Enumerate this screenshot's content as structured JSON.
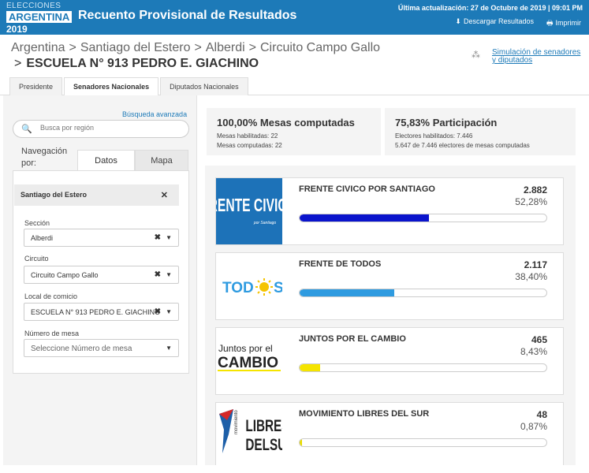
{
  "header": {
    "logo_line1": "ELECCIONES",
    "logo_line2": "ARGENTINA",
    "logo_line3": "2019",
    "title": "Recuento Provisional de Resultados",
    "last_update": "Última actualización: 27 de Octubre de 2019 | 09:01 PM",
    "download_label": "Descargar Resultados",
    "print_label": "Imprimir",
    "download_icon": "download-icon",
    "print_icon": "print-icon",
    "color": "#1d7ab8"
  },
  "breadcrumb": {
    "items": [
      "Argentina",
      "Santiago del Estero",
      "Alberdi",
      "Circuito Campo Gallo"
    ],
    "separator": ">",
    "current": "ESCUELA N° 913 PEDRO E. GIACHINO"
  },
  "simulation_link": "Simulación de senadores y diputados",
  "tabs": [
    {
      "label": "Presidente",
      "active": false
    },
    {
      "label": "Senadores Nacionales",
      "active": true
    },
    {
      "label": "Diputados Nacionales",
      "active": false
    }
  ],
  "sidebar": {
    "advanced_search": "Búsqueda avanzada",
    "search_placeholder": "Busca por región",
    "nav_label": "Navegación por:",
    "subtabs": {
      "datos": "Datos",
      "mapa": "Mapa"
    },
    "selected_chip": "Santiago del Estero",
    "filters": [
      {
        "label": "Sección",
        "value": "Alberdi"
      },
      {
        "label": "Circuito",
        "value": "Circuito Campo Gallo"
      },
      {
        "label": "Local de comicio",
        "value": "ESCUELA N° 913  PEDRO E. GIACHINO"
      },
      {
        "label": "Número de mesa",
        "value": "Seleccione Número de mesa"
      }
    ]
  },
  "stats": {
    "mesas_title": "100,00% Mesas computadas",
    "mesas_habilitadas": "Mesas habilitadas: 22",
    "mesas_computadas": "Mesas computadas: 22",
    "participacion_title": "75,83% Participación",
    "electores_habilitados": "Electores habilitados: 7.446",
    "electores_computados": "5.647 de 7.446 electores de mesas computadas"
  },
  "results": [
    {
      "name": "FRENTE CIVICO POR SANTIAGO",
      "votes": "2.882",
      "percent": "52,28%",
      "share": 52.28,
      "color": "#0a14cc",
      "logo_text": "FRENTE CIVICO"
    },
    {
      "name": "FRENTE DE TODOS",
      "votes": "2.117",
      "percent": "38,40%",
      "share": 38.4,
      "color": "#2f9be0",
      "logo_text": "TOD S"
    },
    {
      "name": "JUNTOS POR EL CAMBIO",
      "votes": "465",
      "percent": "8,43%",
      "share": 8.43,
      "color": "#f5e400",
      "logo_text_1": "Juntos por el",
      "logo_text_2": "CAMBIO"
    },
    {
      "name": "MOVIMIENTO LIBRES DEL SUR",
      "votes": "48",
      "percent": "0,87%",
      "share": 0.87,
      "color": "#e8dc00",
      "logo_text_1": "LIBRES",
      "logo_text_2": "DELSUR",
      "logo_text_small": "movimiento"
    }
  ]
}
